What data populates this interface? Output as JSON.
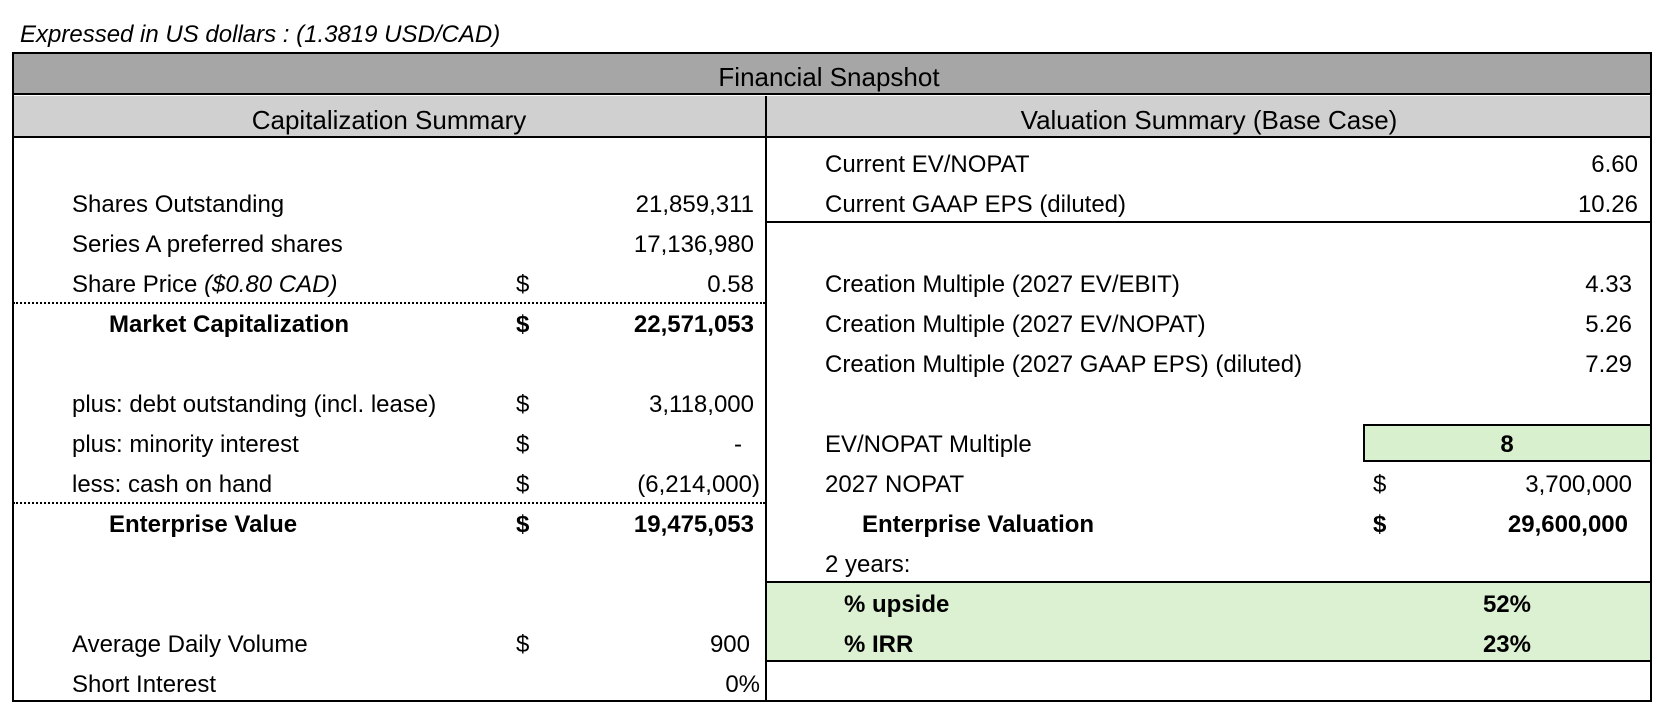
{
  "note": "Expressed in US dollars : (1.3819 USD/CAD)",
  "title": "Financial Snapshot",
  "cap": {
    "title": "Capitalization Summary",
    "shares_outstanding": {
      "label": "Shares Outstanding",
      "value": "21,859,311"
    },
    "series_a": {
      "label": "Series A preferred shares",
      "value": "17,136,980"
    },
    "share_price": {
      "label": "Share Price",
      "label_note": "($0.80 CAD)",
      "currency": "$",
      "value": "0.58"
    },
    "market_cap": {
      "label": "Market Capitalization",
      "currency": "$",
      "value": "22,571,053"
    },
    "debt": {
      "label": "plus: debt outstanding (incl. lease)",
      "currency": "$",
      "value": "3,118,000"
    },
    "minority": {
      "label": "plus: minority interest",
      "currency": "$",
      "value": "-"
    },
    "cash": {
      "label": "less: cash on hand",
      "currency": "$",
      "value": "(6,214,000)"
    },
    "ev": {
      "label": "Enterprise Value",
      "currency": "$",
      "value": "19,475,053"
    },
    "adv": {
      "label": "Average Daily Volume",
      "currency": "$",
      "value": "900"
    },
    "short": {
      "label": "Short Interest",
      "value": "0%"
    }
  },
  "val": {
    "title": "Valuation Summary (Base Case)",
    "ev_nopat": {
      "label": "Current EV/NOPAT",
      "value": "6.60"
    },
    "gaap_eps": {
      "label": "Current GAAP EPS (diluted)",
      "value": "10.26"
    },
    "cm_ebit": {
      "label": "Creation Multiple (2027 EV/EBIT)",
      "value": "4.33"
    },
    "cm_nopat": {
      "label": "Creation Multiple (2027 EV/NOPAT)",
      "value": "5.26"
    },
    "cm_eps": {
      "label": "Creation Multiple (2027 GAAP EPS) (diluted)",
      "value": "7.29"
    },
    "multiple": {
      "label": "EV/NOPAT Multiple",
      "value": "8"
    },
    "nopat_2027": {
      "label": "2027 NOPAT",
      "currency": "$",
      "value": "3,700,000"
    },
    "valuation": {
      "label": "Enterprise Valuation",
      "currency": "$",
      "value": "29,600,000"
    },
    "years": {
      "label": "2 years:"
    },
    "upside": {
      "label": "% upside",
      "value": "52%"
    },
    "irr": {
      "label": "% IRR",
      "value": "23%"
    }
  },
  "colors": {
    "header_dark": "#a6a6a6",
    "header_light": "#d0d0d0",
    "highlight_green": "#dcf0d2"
  }
}
